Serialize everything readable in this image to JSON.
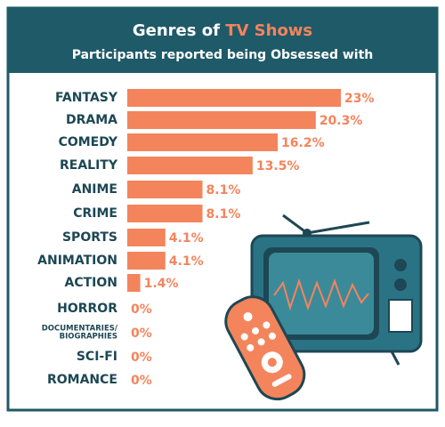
{
  "chart_data": {
    "type": "bar",
    "orientation": "horizontal",
    "title": [
      "Genres of",
      "TV Shows"
    ],
    "subtitle": "Participants reported being Obsessed with",
    "categories": [
      "FANTASY",
      "DRAMA",
      "COMEDY",
      "REALITY",
      "ANIME",
      "CRIME",
      "SPORTS",
      "ANIMATION",
      "ACTION",
      "HORROR",
      "DOCUMENTARIES/\nBIOGRAPHIES",
      "SCI-FI",
      "ROMANCE"
    ],
    "values": [
      23,
      20.3,
      16.2,
      13.5,
      8.1,
      8.1,
      4.1,
      4.1,
      1.4,
      0,
      0,
      0,
      0
    ],
    "value_labels": [
      "23%",
      "20.3%",
      "16.2%",
      "13.5%",
      "8.1%",
      "8.1%",
      "4.1%",
      "4.1%",
      "1.4%",
      "0%",
      "0%",
      "0%",
      "0%"
    ],
    "color": "#f4845c",
    "title_highlight_color": "#f4845c",
    "header_color": "#1f5a69"
  }
}
